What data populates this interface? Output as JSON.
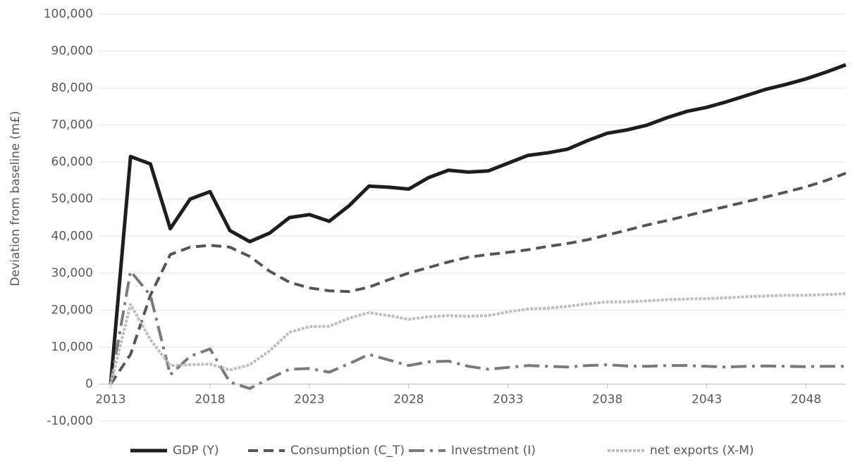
{
  "chart_data": {
    "type": "line",
    "y_label": "Deviation from baseline  (m£)",
    "x": [
      2013,
      2014,
      2015,
      2016,
      2017,
      2018,
      2019,
      2020,
      2021,
      2022,
      2023,
      2024,
      2025,
      2026,
      2027,
      2028,
      2029,
      2030,
      2031,
      2032,
      2033,
      2034,
      2035,
      2036,
      2037,
      2038,
      2039,
      2040,
      2041,
      2042,
      2043,
      2044,
      2045,
      2046,
      2047,
      2048,
      2049,
      2050
    ],
    "xlim": [
      2013,
      2050
    ],
    "xticks": [
      2013,
      2018,
      2023,
      2028,
      2033,
      2038,
      2043,
      2048
    ],
    "ylim": [
      -10000,
      100000
    ],
    "yticks": [
      {
        "value": -10000,
        "label": "-10,000"
      },
      0,
      {
        "value": 10000,
        "label": "10,000"
      },
      {
        "value": 20000,
        "label": "20,000"
      },
      {
        "value": 30000,
        "label": "30,000"
      },
      {
        "value": 40000,
        "label": "40,000"
      },
      {
        "value": 50000,
        "label": "50,000"
      },
      {
        "value": 60000,
        "label": "60,000"
      },
      {
        "value": 70000,
        "label": "70,000"
      },
      {
        "value": 80000,
        "label": "80,000"
      },
      {
        "value": 90000,
        "label": "90,000"
      },
      {
        "value": 100000,
        "label": "100,000"
      }
    ],
    "grid": true,
    "legend": "bottom",
    "series": [
      {
        "name": "GDP (Y)",
        "color": "#1e1e1e",
        "dash": "solid",
        "values": [
          0,
          61500,
          59500,
          42000,
          50000,
          52000,
          41500,
          38500,
          40800,
          45000,
          45800,
          44000,
          48200,
          53500,
          53200,
          52700,
          55800,
          57800,
          57300,
          57600,
          59700,
          61800,
          62500,
          63500,
          65800,
          67800,
          68700,
          70000,
          72000,
          73700,
          74800,
          76300,
          78000,
          79700,
          81000,
          82500,
          84300,
          86300
        ]
      },
      {
        "name": "Consumption (C_T)",
        "color": "#555555",
        "dash": "dashed",
        "values": [
          0,
          8000,
          24000,
          35000,
          37000,
          37500,
          37000,
          34500,
          30500,
          27500,
          26000,
          25200,
          25000,
          26200,
          28200,
          30000,
          31500,
          33000,
          34300,
          35000,
          35600,
          36300,
          37200,
          38000,
          39000,
          40300,
          41600,
          43000,
          44200,
          45500,
          46800,
          48000,
          49300,
          50600,
          51900,
          53300,
          55000,
          57000
        ]
      },
      {
        "name": "Investment (I)",
        "color": "#7a7a7a",
        "dash": "dashdot",
        "values": [
          0,
          30500,
          24000,
          2500,
          7500,
          9500,
          500,
          -1200,
          1500,
          4000,
          4200,
          3200,
          5500,
          8000,
          6500,
          5000,
          6000,
          6200,
          4800,
          4000,
          4500,
          5000,
          4800,
          4600,
          5000,
          5200,
          4900,
          4800,
          5000,
          5000,
          4800,
          4600,
          4800,
          4900,
          4800,
          4700,
          4800,
          4800
        ]
      },
      {
        "name": "net exports (X-M)",
        "color": "#bdbdbd",
        "dash": "dotted",
        "values": [
          0,
          21500,
          12000,
          5000,
          5200,
          5400,
          3800,
          5200,
          9000,
          14000,
          15500,
          15600,
          17800,
          19300,
          18500,
          17500,
          18200,
          18500,
          18300,
          18500,
          19500,
          20300,
          20500,
          21000,
          21700,
          22200,
          22200,
          22500,
          22800,
          23000,
          23100,
          23300,
          23600,
          23800,
          24000,
          24000,
          24200,
          24400
        ]
      }
    ]
  }
}
